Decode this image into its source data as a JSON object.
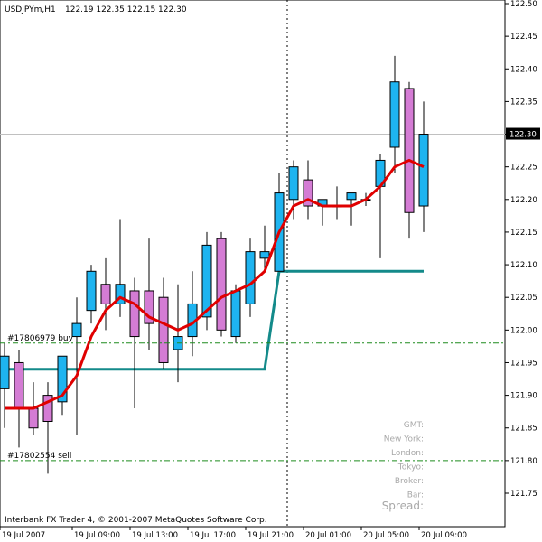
{
  "chart_data": {
    "type": "candlestick",
    "title": "USDJPYm,H1",
    "ohlc_header": "122.19 122.35 122.15 122.30",
    "footer": "Interbank FX Trader 4, © 2001-2007 MetaQuotes Software Corp.",
    "current_price": "122.30",
    "ylim": [
      121.7,
      122.5
    ],
    "yticks": [
      "121.75",
      "121.80",
      "121.85",
      "121.90",
      "121.95",
      "122.00",
      "122.05",
      "122.10",
      "122.15",
      "122.20",
      "122.25",
      "122.30",
      "122.35",
      "122.40",
      "122.45",
      "122.50"
    ],
    "xticks": [
      "19 Jul 2007",
      "19 Jul 09:00",
      "19 Jul 13:00",
      "19 Jul 17:00",
      "19 Jul 21:00",
      "20 Jul 01:00",
      "20 Jul 05:00",
      "20 Jul 09:00"
    ],
    "xtick_bar_index": [
      0,
      5,
      9,
      13,
      17,
      21,
      25,
      29
    ],
    "bull_color": "#1eb4f0",
    "bear_color": "#d47cd4",
    "ma_color": "#e00000",
    "level_color": "#138a8a",
    "order_line_color": "#1e8c1e",
    "candles": [
      {
        "o": 121.91,
        "h": 121.98,
        "l": 121.85,
        "c": 121.96
      },
      {
        "o": 121.95,
        "h": 121.97,
        "l": 121.82,
        "c": 121.88
      },
      {
        "o": 121.88,
        "h": 121.92,
        "l": 121.84,
        "c": 121.85
      },
      {
        "o": 121.9,
        "h": 121.92,
        "l": 121.78,
        "c": 121.86
      },
      {
        "o": 121.89,
        "h": 121.96,
        "l": 121.87,
        "c": 121.96
      },
      {
        "o": 121.99,
        "h": 122.05,
        "l": 121.84,
        "c": 122.01
      },
      {
        "o": 122.03,
        "h": 122.1,
        "l": 122.01,
        "c": 122.09
      },
      {
        "o": 122.07,
        "h": 122.11,
        "l": 122.0,
        "c": 122.04
      },
      {
        "o": 122.04,
        "h": 122.17,
        "l": 122.02,
        "c": 122.07
      },
      {
        "o": 122.06,
        "h": 122.08,
        "l": 121.88,
        "c": 121.99
      },
      {
        "o": 122.06,
        "h": 122.14,
        "l": 121.97,
        "c": 122.01
      },
      {
        "o": 122.05,
        "h": 122.08,
        "l": 121.94,
        "c": 121.95
      },
      {
        "o": 121.97,
        "h": 122.07,
        "l": 121.92,
        "c": 121.99
      },
      {
        "o": 121.99,
        "h": 122.09,
        "l": 121.96,
        "c": 122.04
      },
      {
        "o": 122.02,
        "h": 122.15,
        "l": 122.0,
        "c": 122.13
      },
      {
        "o": 122.14,
        "h": 122.15,
        "l": 121.99,
        "c": 122.0
      },
      {
        "o": 121.99,
        "h": 122.07,
        "l": 121.98,
        "c": 122.06
      },
      {
        "o": 122.04,
        "h": 122.14,
        "l": 122.02,
        "c": 122.12
      },
      {
        "o": 122.11,
        "h": 122.16,
        "l": 122.09,
        "c": 122.12
      },
      {
        "o": 122.09,
        "h": 122.24,
        "l": 122.09,
        "c": 122.21
      },
      {
        "o": 122.2,
        "h": 122.26,
        "l": 122.17,
        "c": 122.25
      },
      {
        "o": 122.23,
        "h": 122.26,
        "l": 122.17,
        "c": 122.19
      },
      {
        "o": 122.19,
        "h": 122.2,
        "l": 122.16,
        "c": 122.2
      },
      {
        "o": 122.19,
        "h": 122.22,
        "l": 122.17,
        "c": 122.19
      },
      {
        "o": 122.2,
        "h": 122.21,
        "l": 122.16,
        "c": 122.21
      },
      {
        "o": 122.2,
        "h": 122.21,
        "l": 122.19,
        "c": 122.2
      },
      {
        "o": 122.22,
        "h": 122.27,
        "l": 122.11,
        "c": 122.26
      },
      {
        "o": 122.28,
        "h": 122.42,
        "l": 122.24,
        "c": 122.38
      },
      {
        "o": 122.37,
        "h": 122.38,
        "l": 122.14,
        "c": 122.18
      },
      {
        "o": 122.19,
        "h": 122.35,
        "l": 122.15,
        "c": 122.3
      }
    ],
    "ma": [
      121.88,
      121.88,
      121.88,
      121.89,
      121.9,
      121.93,
      121.99,
      122.03,
      122.05,
      122.04,
      122.02,
      122.01,
      122.0,
      122.01,
      122.03,
      122.05,
      122.06,
      122.07,
      122.09,
      122.15,
      122.19,
      122.2,
      122.19,
      122.19,
      122.19,
      122.2,
      122.22,
      122.25,
      122.26,
      122.25
    ],
    "level_line": [
      {
        "bar": 0,
        "y": 121.94
      },
      {
        "bar": 18,
        "y": 121.94
      },
      {
        "bar": 19,
        "y": 122.09
      },
      {
        "bar": 29,
        "y": 122.09
      }
    ],
    "orders": [
      {
        "label": "#17806979 buy",
        "price": 121.98
      },
      {
        "label": "#17802554 sell",
        "price": 121.8
      }
    ],
    "info_panel": [
      "GMT:",
      "New York:",
      "London:",
      "Tokyo:",
      "Broker:",
      "Bar:"
    ],
    "spread_label": "Spread:"
  }
}
